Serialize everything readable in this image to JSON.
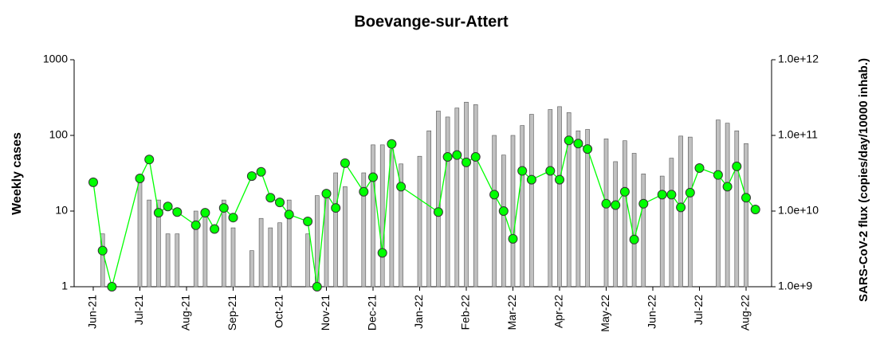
{
  "chart_data": {
    "type": "bar-line",
    "title": "Boevange-sur-Attert",
    "y_label": "Weekly cases",
    "y2_label": "SARS-CoV-2 flux (copies/day/10000 inhab.)",
    "categories": [
      "Jun-21",
      null,
      null,
      null,
      null,
      "Jul-21",
      null,
      null,
      null,
      null,
      "Aug-21",
      null,
      null,
      null,
      null,
      "Sep-21",
      null,
      null,
      null,
      null,
      "Oct-21",
      null,
      null,
      null,
      null,
      "Nov-21",
      null,
      null,
      null,
      null,
      "Dec-21",
      null,
      null,
      null,
      null,
      "Jan-22",
      null,
      null,
      null,
      null,
      "Feb-22",
      null,
      null,
      null,
      null,
      "Mar-22",
      null,
      null,
      null,
      null,
      "Apr-22",
      null,
      null,
      null,
      null,
      "May-22",
      null,
      null,
      null,
      null,
      "Jun-22",
      null,
      null,
      null,
      null,
      "Jul-22",
      null,
      null,
      null,
      null,
      "Aug-22",
      null
    ],
    "series": [
      {
        "type": "bar",
        "color": "#c0c0c0",
        "values": [
          null,
          5,
          null,
          null,
          null,
          25,
          14,
          14,
          5,
          5,
          null,
          10,
          10,
          null,
          14,
          6,
          null,
          3,
          8,
          6,
          7,
          14,
          null,
          5,
          16,
          18,
          32,
          21,
          null,
          32,
          75,
          75,
          65,
          42,
          null,
          53,
          115,
          210,
          175,
          230,
          275,
          255,
          null,
          100,
          55,
          100,
          135,
          190,
          null,
          220,
          240,
          200,
          115,
          120,
          null,
          90,
          45,
          85,
          58,
          31,
          null,
          29,
          50,
          98,
          95,
          null,
          null,
          160,
          145,
          115,
          78,
          null
        ]
      },
      {
        "type": "line",
        "axis": "y2",
        "color": "#00ff00",
        "values": [
          24000000000.0,
          3000000000.0,
          1000000000.0,
          null,
          null,
          27000000000.0,
          48000000000.0,
          9500000000.0,
          11500000000.0,
          9700000000.0,
          null,
          6500000000.0,
          9500000000.0,
          5800000000.0,
          11000000000.0,
          8200000000.0,
          null,
          29000000000.0,
          33000000000.0,
          15000000000.0,
          13000000000.0,
          9000000000.0,
          null,
          7300000000.0,
          1000000000.0,
          17000000000.0,
          11000000000.0,
          43000000000.0,
          null,
          18000000000.0,
          28000000000.0,
          2800000000.0,
          77000000000.0,
          21000000000.0,
          null,
          null,
          null,
          9700000000.0,
          52000000000.0,
          55000000000.0,
          44000000000.0,
          52000000000.0,
          null,
          16500000000.0,
          10000000000.0,
          4300000000.0,
          34000000000.0,
          26000000000.0,
          null,
          34000000000.0,
          26000000000.0,
          86000000000.0,
          78000000000.0,
          66000000000.0,
          null,
          12500000000.0,
          12000000000.0,
          18000000000.0,
          4200000000.0,
          12500000000.0,
          null,
          16500000000.0,
          16500000000.0,
          11200000000.0,
          17500000000.0,
          37000000000.0,
          null,
          30000000000.0,
          21000000000.0,
          39000000000.0,
          15000000000.0,
          10500000000.0
        ]
      }
    ],
    "ylim": [
      1,
      1000
    ],
    "yticks": [
      1,
      10,
      100,
      1000
    ],
    "ylog": true,
    "y2lim": [
      1000000000.0,
      1000000000000.0
    ],
    "y2log": true,
    "y2ticks": [
      {
        "value": 1000000000.0,
        "label": "1.0e+9"
      },
      {
        "value": 10000000000.0,
        "label": "1.0e+10"
      },
      {
        "value": 100000000000.0,
        "label": "1.0e+11"
      },
      {
        "value": 1000000000000.0,
        "label": "1.0e+12"
      }
    ]
  }
}
